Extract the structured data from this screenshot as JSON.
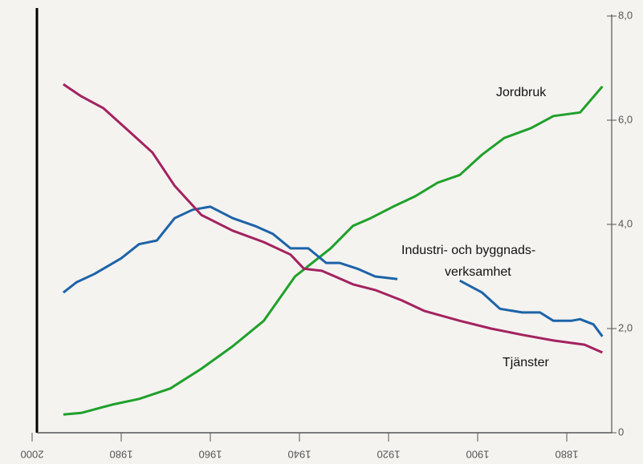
{
  "chart_data": {
    "type": "line",
    "annotations": [
      "Jordbruk",
      "Industri- och byggnads-",
      "verksamhet",
      "Tjänster"
    ],
    "xlim": [
      2000,
      1871
    ],
    "xticks": [
      2000,
      1980,
      1960,
      1940,
      1920,
      1900,
      1880
    ],
    "ylim": [
      0,
      8
    ],
    "yticks": [
      0,
      {
        "value": 2,
        "label": "2,0"
      },
      {
        "value": 4,
        "label": "4,0"
      },
      {
        "value": 6,
        "label": "6,0"
      },
      {
        "value": 8,
        "label": "8,0"
      }
    ],
    "series": [
      {
        "color": "#1fa02a",
        "x": [
          1993,
          1989,
          1982,
          1976,
          1969,
          1962,
          1955,
          1948,
          1941,
          1933,
          1928,
          1924,
          1919,
          1914,
          1909,
          1904,
          1899,
          1894,
          1888,
          1883,
          1877,
          1872
        ],
        "values": [
          0.35,
          0.38,
          0.54,
          0.65,
          0.85,
          1.23,
          1.66,
          2.15,
          3.0,
          3.54,
          3.97,
          4.12,
          4.34,
          4.54,
          4.8,
          4.95,
          5.34,
          5.66,
          5.85,
          6.08,
          6.15,
          6.65
        ]
      },
      {
        "color": "#1d63a8",
        "x": [
          1993,
          1990,
          1986,
          1980,
          1976,
          1972,
          1968,
          1964,
          1960,
          1955,
          1950,
          1946,
          1942,
          1938,
          1934,
          1931,
          1927,
          1923,
          1918,
          1912,
          1904,
          1899,
          1895,
          1890,
          1886,
          1883,
          1879,
          1877,
          1874,
          1872
        ],
        "values": [
          2.69,
          2.89,
          3.05,
          3.35,
          3.62,
          3.69,
          4.12,
          4.28,
          4.34,
          4.12,
          3.97,
          3.82,
          3.54,
          3.54,
          3.26,
          3.26,
          3.15,
          3.0,
          2.95,
          null,
          2.92,
          2.69,
          2.38,
          2.31,
          2.31,
          2.15,
          2.15,
          2.18,
          2.08,
          1.85
        ]
      },
      {
        "color": "#a3225f",
        "x": [
          1993,
          1989,
          1984,
          1978,
          1973,
          1968,
          1962,
          1955,
          1948,
          1942,
          1939,
          1935,
          1932,
          1928,
          1923,
          1917,
          1912,
          1904,
          1897,
          1890,
          1883,
          1876,
          1872
        ],
        "values": [
          6.69,
          6.46,
          6.23,
          5.77,
          5.38,
          4.74,
          4.18,
          3.88,
          3.66,
          3.42,
          3.15,
          3.11,
          3.0,
          2.85,
          2.74,
          2.54,
          2.34,
          2.15,
          2.0,
          1.88,
          1.77,
          1.69,
          1.54
        ]
      }
    ]
  }
}
